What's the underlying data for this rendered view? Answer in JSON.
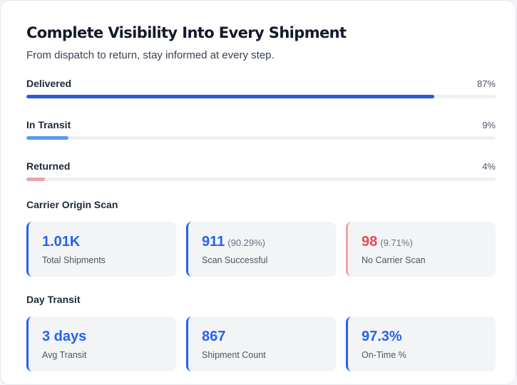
{
  "header": {
    "title": "Complete Visibility Into Every Shipment",
    "subtitle": "From dispatch to return, stay informed at every step."
  },
  "progress": [
    {
      "label": "Delivered",
      "percent_label": "87%",
      "value": 0.87,
      "color": "#2859d7"
    },
    {
      "label": "In Transit",
      "percent_label": "9%",
      "value": 0.09,
      "color": "#5b9cec"
    },
    {
      "label": "Returned",
      "percent_label": "4%",
      "value": 0.04,
      "color": "#e9a3ab"
    }
  ],
  "carrier_origin_scan": {
    "title": "Carrier Origin Scan",
    "stats": [
      {
        "value": "1.01K",
        "sub": "",
        "caption": "Total Shipments",
        "accent": "#2563eb",
        "value_color": "#2563eb"
      },
      {
        "value": "911",
        "sub": "(90.29%)",
        "caption": "Scan Successful",
        "accent": "#2563eb",
        "value_color": "#2563eb"
      },
      {
        "value": "98",
        "sub": "(9.71%)",
        "caption": "No Carrier Scan",
        "accent": "#f0a4a4",
        "value_color": "#e24d4d"
      }
    ]
  },
  "day_transit": {
    "title": "Day Transit",
    "stats": [
      {
        "value": "3 days",
        "sub": "",
        "caption": "Avg Transit",
        "accent": "#2563eb",
        "value_color": "#2563eb"
      },
      {
        "value": "867",
        "sub": "",
        "caption": "Shipment Count",
        "accent": "#2563eb",
        "value_color": "#2563eb"
      },
      {
        "value": "97.3%",
        "sub": "",
        "caption": "On-Time %",
        "accent": "#2563eb",
        "value_color": "#2563eb"
      }
    ]
  }
}
